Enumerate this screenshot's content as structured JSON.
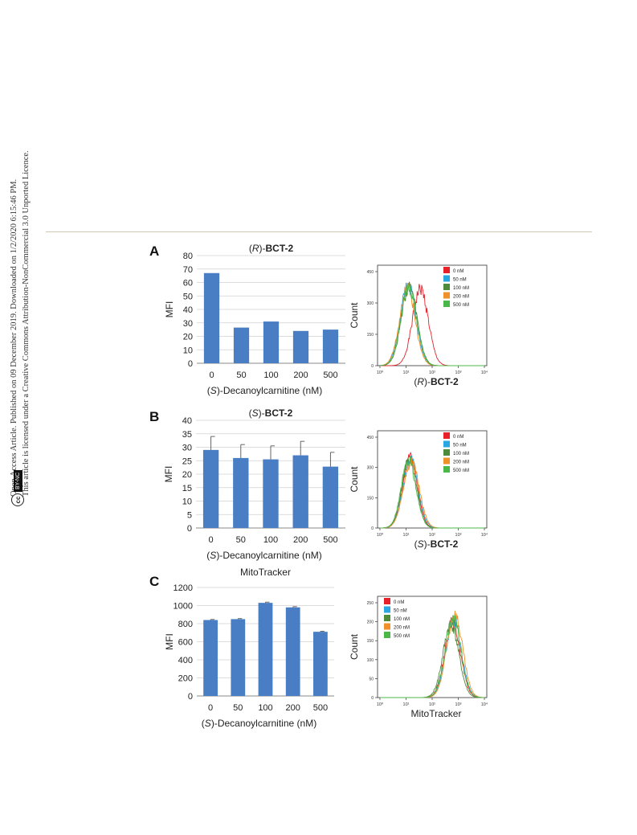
{
  "side_note": {
    "line1": "Open Access Article. Published on 09 December 2019. Downloaded on 1/2/2020 6:15:46 PM.",
    "line2": "This article is licensed under a Creative Commons Attribution-NonCommercial 3.0 Unported Licence.",
    "badge_cc": "cc",
    "badge_by": "BY-NC"
  },
  "colors": {
    "bar": "#4a7ec4",
    "hist_0": "#e8202a",
    "hist_50": "#2aa6e0",
    "hist_100": "#4d8a3a",
    "hist_200": "#f0902a",
    "hist_500": "#49b849"
  },
  "legend_labels": [
    "0 nM",
    "50 nM",
    "100 nM",
    "200 nM",
    "500 nM"
  ],
  "chart_data": [
    {
      "panel": "A",
      "type": "bar",
      "title_prefix": "(R)-",
      "title_bold": "BCT-2",
      "ylabel": "MFI",
      "xlabel": "(S)-Decanoylcarnitine (nM)",
      "categories": [
        "0",
        "50",
        "100",
        "200",
        "500"
      ],
      "values": [
        67,
        26.5,
        31,
        24,
        25
      ],
      "errors": [
        0,
        0,
        0,
        0,
        0
      ],
      "ylim": [
        0,
        80
      ],
      "yticks": [
        "0",
        "10",
        "20",
        "30",
        "40",
        "50",
        "60",
        "70",
        "80"
      ]
    },
    {
      "panel": "A",
      "type": "line",
      "kind": "histogram",
      "ylabel": "Count",
      "xlabel_prefix": "(R)-",
      "xlabel_bold": "BCT-2",
      "yticks": [
        "0",
        "150",
        "300",
        "450"
      ],
      "ylim": [
        0,
        450
      ],
      "xticks": [
        "10⁰",
        "10¹",
        "10²",
        "10³",
        "10⁴"
      ],
      "xscale": "log",
      "series": [
        {
          "name": "0 nM",
          "peak_log10": 1.55,
          "height": 370,
          "width": 0.3
        },
        {
          "name": "50 nM",
          "peak_log10": 1.08,
          "height": 385,
          "width": 0.3
        },
        {
          "name": "100 nM",
          "peak_log10": 1.12,
          "height": 380,
          "width": 0.3
        },
        {
          "name": "200 nM",
          "peak_log10": 1.05,
          "height": 372,
          "width": 0.3
        },
        {
          "name": "500 nM",
          "peak_log10": 1.1,
          "height": 378,
          "width": 0.3
        }
      ]
    },
    {
      "panel": "B",
      "type": "bar",
      "title_prefix": "(S)-",
      "title_bold": "BCT-2",
      "ylabel": "MFI",
      "xlabel": "(S)-Decanoylcarnitine (nM)",
      "categories": [
        "0",
        "50",
        "100",
        "200",
        "500"
      ],
      "values": [
        29,
        26,
        25.5,
        27,
        22.8
      ],
      "errors": [
        5,
        5,
        5,
        5.2,
        5.3
      ],
      "ylim": [
        0,
        40
      ],
      "yticks": [
        "0",
        "5",
        "10",
        "15",
        "20",
        "25",
        "30",
        "35",
        "40"
      ]
    },
    {
      "panel": "B",
      "type": "line",
      "kind": "histogram",
      "ylabel": "Count",
      "xlabel_prefix": "(S)-",
      "xlabel_bold": "BCT-2",
      "yticks": [
        "0",
        "150",
        "300",
        "450"
      ],
      "ylim": [
        0,
        450
      ],
      "xticks": [
        "10⁰",
        "10¹",
        "10²",
        "10³",
        "10⁴"
      ],
      "xscale": "log",
      "series": [
        {
          "name": "0 nM",
          "peak_log10": 1.15,
          "height": 350,
          "width": 0.28
        },
        {
          "name": "50 nM",
          "peak_log10": 1.18,
          "height": 340,
          "width": 0.29
        },
        {
          "name": "100 nM",
          "peak_log10": 1.12,
          "height": 345,
          "width": 0.28
        },
        {
          "name": "200 nM",
          "peak_log10": 1.2,
          "height": 330,
          "width": 0.3
        },
        {
          "name": "500 nM",
          "peak_log10": 1.1,
          "height": 338,
          "width": 0.28
        }
      ]
    },
    {
      "panel": "C",
      "type": "bar",
      "title_prefix": "",
      "title_bold": "",
      "title_plain": "MitoTracker",
      "ylabel": "MFI",
      "xlabel": "(S)-Decanoylcarnitine (nM)",
      "categories": [
        "0",
        "50",
        "100",
        "200",
        "500"
      ],
      "values": [
        840,
        850,
        1030,
        980,
        710
      ],
      "errors": [
        6,
        6,
        8,
        8,
        6
      ],
      "ylim": [
        0,
        1200
      ],
      "yticks": [
        "0",
        "200",
        "400",
        "600",
        "800",
        "1000",
        "1200"
      ]
    },
    {
      "panel": "C",
      "type": "line",
      "kind": "histogram",
      "ylabel": "Count",
      "xlabel_plain": "MitoTracker",
      "yticks": [
        "0",
        "50",
        "100",
        "150",
        "200",
        "250"
      ],
      "ylim": [
        0,
        250
      ],
      "xticks": [
        "10⁰",
        "10¹",
        "10²",
        "10³",
        "10⁴"
      ],
      "xscale": "log",
      "series": [
        {
          "name": "0 nM",
          "peak_log10": 2.78,
          "height": 200,
          "width": 0.3
        },
        {
          "name": "50 nM",
          "peak_log10": 2.82,
          "height": 205,
          "width": 0.3
        },
        {
          "name": "100 nM",
          "peak_log10": 2.72,
          "height": 195,
          "width": 0.3
        },
        {
          "name": "200 nM",
          "peak_log10": 2.86,
          "height": 222,
          "width": 0.3
        },
        {
          "name": "500 nM",
          "peak_log10": 2.8,
          "height": 210,
          "width": 0.3
        }
      ]
    }
  ]
}
